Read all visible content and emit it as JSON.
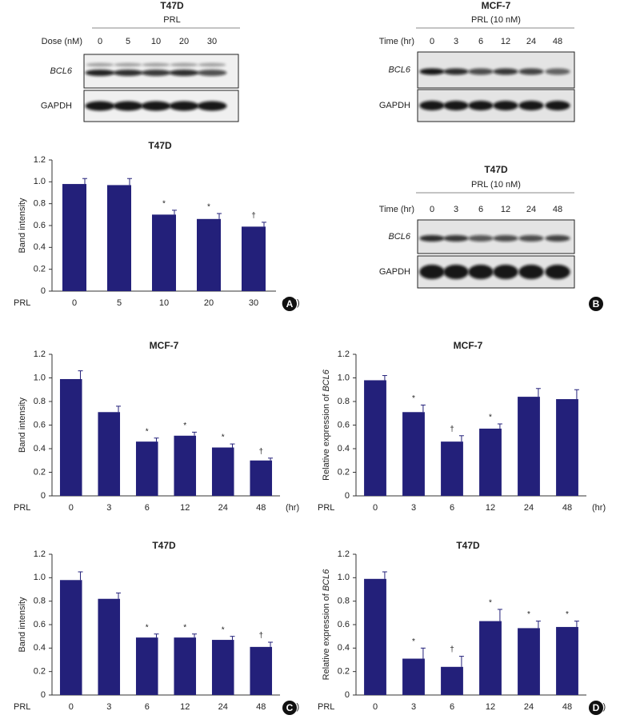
{
  "chart_data": [
    {
      "type": "bar",
      "title": "T47D",
      "ylabel": "Band intensity",
      "xprefix": "PRL",
      "xunit": "(nM)",
      "panel": "A",
      "categories": [
        "0",
        "5",
        "10",
        "20",
        "30"
      ],
      "values": [
        0.98,
        0.97,
        0.7,
        0.66,
        0.59
      ],
      "errors": [
        0.05,
        0.06,
        0.04,
        0.05,
        0.04
      ],
      "annotations": [
        null,
        null,
        "*",
        "*",
        "†"
      ],
      "color": "#23207a",
      "ylim": [
        0,
        1.2
      ],
      "yticks": [
        0,
        0.2,
        0.4,
        0.6,
        0.8,
        {
          "value": 1,
          "label": "1.0"
        },
        1.2
      ]
    },
    {
      "type": "bar",
      "title": "MCF-7",
      "ylabel": "Band intensity",
      "xprefix": "PRL",
      "xunit": "(hr)",
      "categories": [
        "0",
        "3",
        "6",
        "12",
        "24",
        "48"
      ],
      "values": [
        0.99,
        0.71,
        0.46,
        0.51,
        0.41,
        0.3
      ],
      "errors": [
        0.07,
        0.05,
        0.03,
        0.03,
        0.03,
        0.02
      ],
      "annotations": [
        null,
        null,
        "*",
        "*",
        "*",
        "†"
      ],
      "color": "#23207a",
      "ylim": [
        0,
        1.2
      ],
      "yticks": [
        0,
        0.2,
        0.4,
        0.6,
        0.8,
        {
          "value": 1,
          "label": "1.0"
        },
        1.2
      ]
    },
    {
      "type": "bar",
      "title": "MCF-7",
      "ylabel": {
        "text": "Relative expression of",
        "gene": "BCL6"
      },
      "xprefix": "PRL",
      "xunit": "(hr)",
      "categories": [
        "0",
        "3",
        "6",
        "12",
        "24",
        "48"
      ],
      "values": [
        0.98,
        0.71,
        0.46,
        0.57,
        0.84,
        0.82
      ],
      "errors": [
        0.04,
        0.06,
        0.05,
        0.04,
        0.07,
        0.08
      ],
      "annotations": [
        null,
        "*",
        "†",
        "*",
        null,
        null
      ],
      "color": "#23207a",
      "ylim": [
        0,
        1.2
      ],
      "yticks": [
        0,
        0.2,
        0.4,
        0.6,
        0.8,
        {
          "value": 1,
          "label": "1.0"
        },
        1.2
      ]
    },
    {
      "type": "bar",
      "title": "T47D",
      "ylabel": "Band intensity",
      "xprefix": "PRL",
      "xunit": "(hr)",
      "panel": "C",
      "categories": [
        "0",
        "3",
        "6",
        "12",
        "24",
        "48"
      ],
      "values": [
        0.98,
        0.82,
        0.49,
        0.49,
        0.47,
        0.41
      ],
      "errors": [
        0.07,
        0.05,
        0.03,
        0.03,
        0.03,
        0.04
      ],
      "annotations": [
        null,
        null,
        "*",
        "*",
        "*",
        "†"
      ],
      "color": "#23207a",
      "ylim": [
        0,
        1.2
      ],
      "yticks": [
        0,
        0.2,
        0.4,
        0.6,
        0.8,
        {
          "value": 1,
          "label": "1.0"
        },
        1.2
      ]
    },
    {
      "type": "bar",
      "title": "T47D",
      "ylabel": {
        "text": "Relative expression of",
        "gene": "BCL6"
      },
      "xprefix": "PRL",
      "xunit": "(hr)",
      "panel": "D",
      "categories": [
        "0",
        "3",
        "6",
        "12",
        "24",
        "48"
      ],
      "values": [
        0.99,
        0.31,
        0.24,
        0.63,
        0.57,
        0.58
      ],
      "errors": [
        0.06,
        0.09,
        0.09,
        0.1,
        0.06,
        0.05
      ],
      "annotations": [
        null,
        "*",
        "†",
        "*",
        "*",
        "*"
      ],
      "color": "#23207a",
      "ylim": [
        0,
        1.2
      ],
      "yticks": [
        0,
        0.2,
        0.4,
        0.6,
        0.8,
        {
          "value": 1,
          "label": "1.0"
        },
        1.2
      ]
    }
  ],
  "blots": {
    "panel": "B",
    "items": [
      {
        "title": "T47D",
        "treatment": "PRL",
        "axis": "Dose (nM)",
        "lanes": [
          "0",
          "5",
          "10",
          "20",
          "30"
        ],
        "rows": [
          "BCL6",
          "GAPDH"
        ]
      },
      {
        "title": "MCF-7",
        "treatment": "PRL (10 nM)",
        "axis": "Time (hr)",
        "lanes": [
          "0",
          "3",
          "6",
          "12",
          "24",
          "48"
        ],
        "rows": [
          "BCL6",
          "GAPDH"
        ]
      },
      {
        "title": "T47D",
        "treatment": "PRL (10 nM)",
        "axis": "Time (hr)",
        "lanes": [
          "0",
          "3",
          "6",
          "12",
          "24",
          "48"
        ],
        "rows": [
          "BCL6",
          "GAPDH"
        ]
      }
    ]
  }
}
